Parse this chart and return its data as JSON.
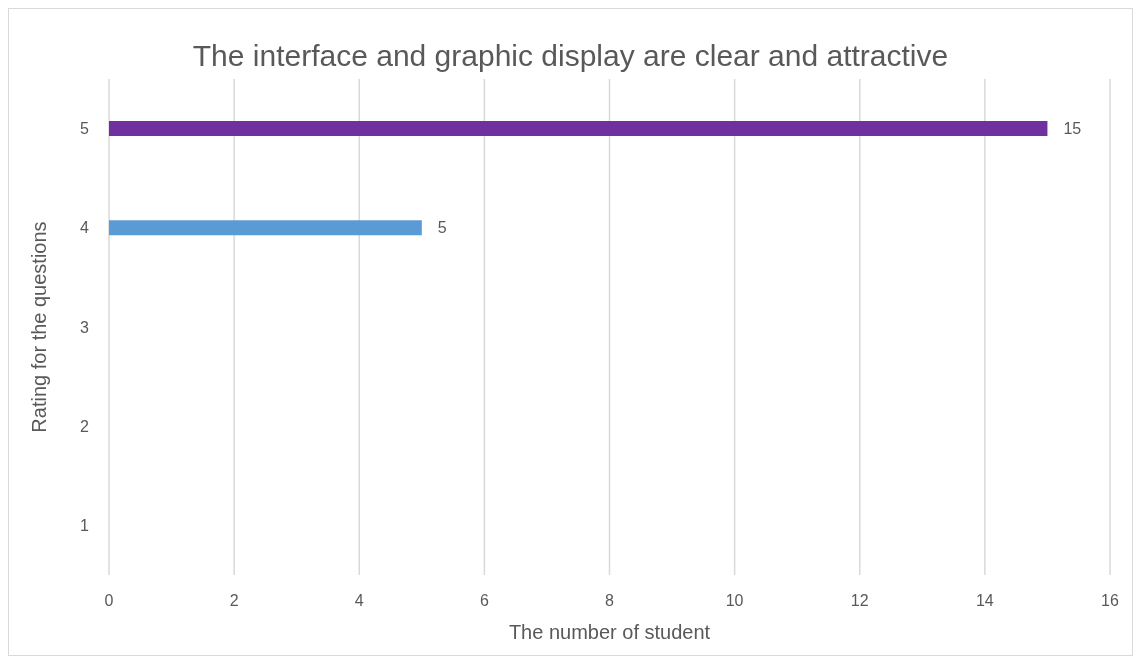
{
  "chart_data": {
    "type": "bar",
    "orientation": "horizontal",
    "title": "The interface and graphic display are clear and attractive",
    "xlabel": "The number of student",
    "ylabel": "Rating for the questions",
    "categories": [
      "5",
      "4",
      "3",
      "2",
      "1"
    ],
    "values": [
      15,
      5,
      null,
      null,
      null
    ],
    "colors": [
      "#7030a0",
      "#5b9bd5",
      null,
      null,
      null
    ],
    "xlim": [
      0,
      16
    ],
    "xticks": [
      0,
      2,
      4,
      6,
      8,
      10,
      12,
      14,
      16
    ],
    "grid": "x",
    "data_labels": true
  }
}
